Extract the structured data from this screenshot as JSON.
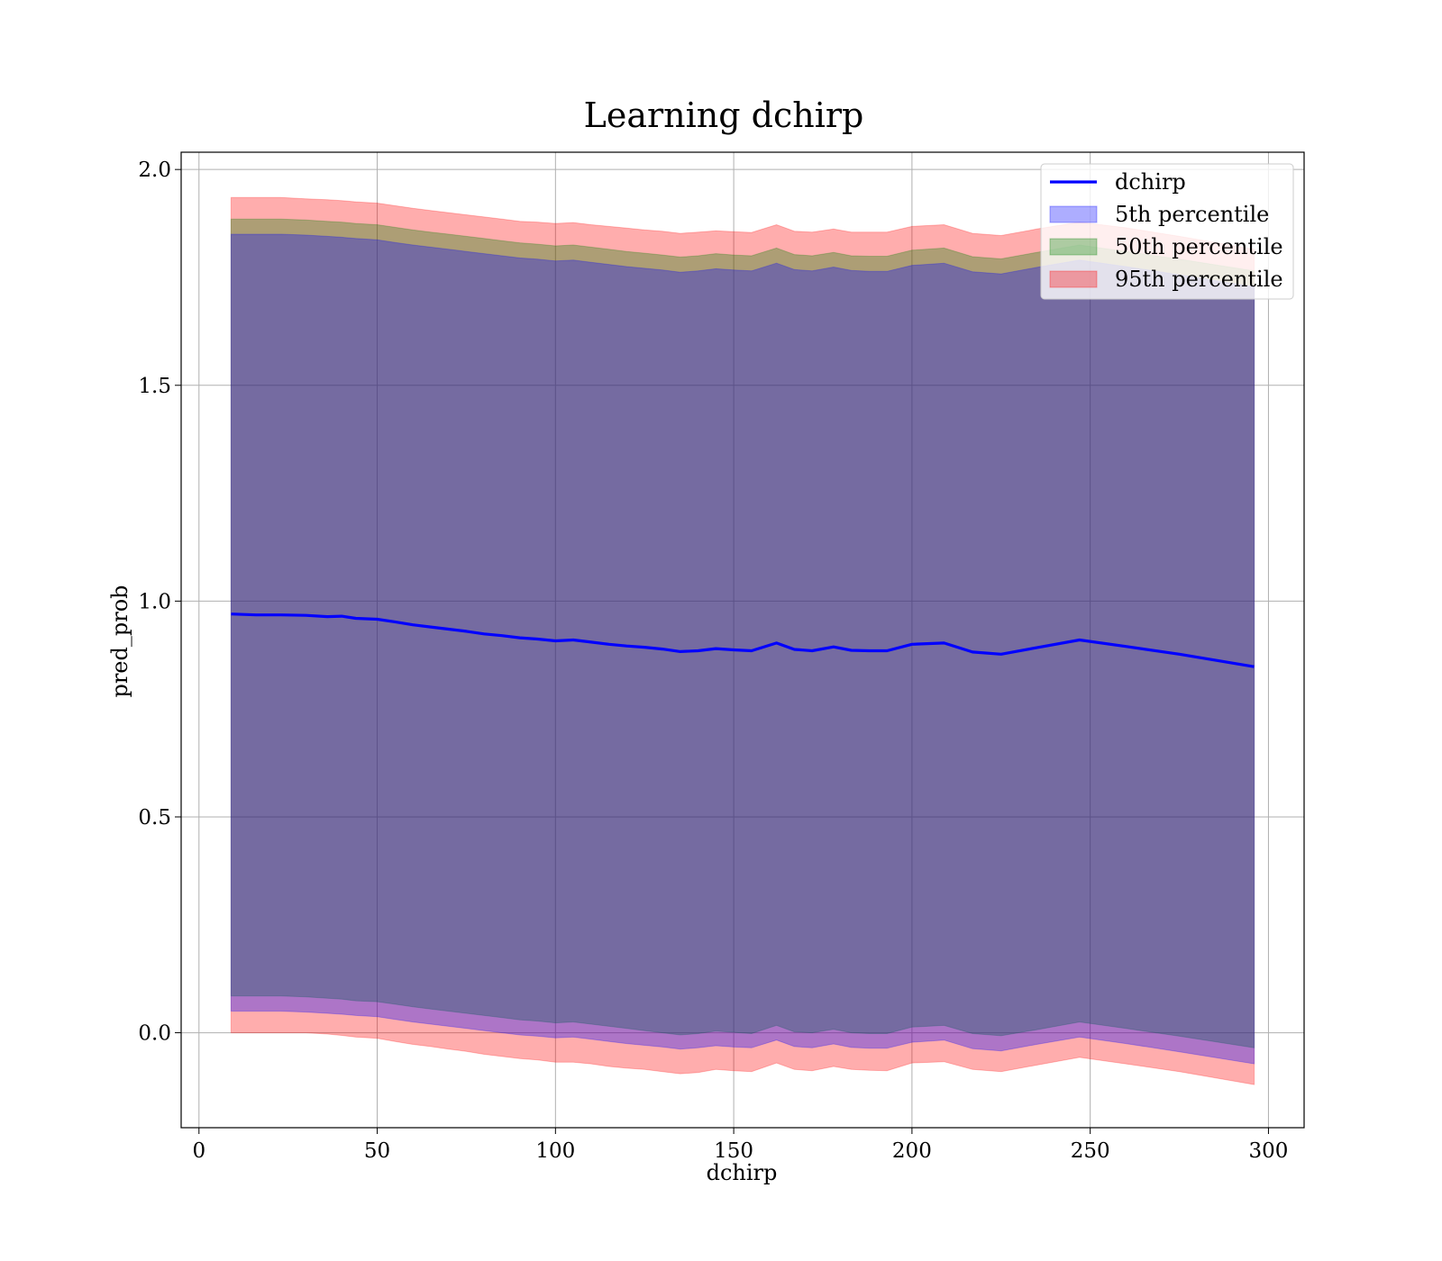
{
  "chart_data": {
    "type": "line",
    "title": "Learning dchirp",
    "xlabel": "dchirp",
    "ylabel": "pred_prob",
    "xlim": [
      -5,
      310
    ],
    "ylim": [
      -0.22,
      2.04
    ],
    "xticks": [
      0,
      50,
      100,
      150,
      200,
      250,
      300
    ],
    "yticks": [
      0.0,
      0.5,
      1.0,
      1.5,
      2.0
    ],
    "xtick_labels": [
      "0",
      "50",
      "100",
      "150",
      "200",
      "250",
      "300"
    ],
    "ytick_labels": [
      "0.0",
      "0.5",
      "1.0",
      "1.5",
      "2.0"
    ],
    "grid": true,
    "legend_position": "top-right",
    "legend": [
      {
        "label": "dchirp",
        "kind": "line",
        "color": "#0000ff"
      },
      {
        "label": "5th percentile",
        "kind": "patch",
        "color": "#0000ff"
      },
      {
        "label": "50th percentile",
        "kind": "patch",
        "color": "#008000"
      },
      {
        "label": "95th percentile",
        "kind": "patch",
        "color": "#ff0000"
      }
    ],
    "x": [
      9,
      16,
      23,
      30,
      36,
      40,
      44,
      50,
      55,
      60,
      65,
      70,
      75,
      80,
      85,
      90,
      95,
      100,
      105,
      110,
      115,
      120,
      125,
      130,
      135,
      140,
      145,
      150,
      155,
      162,
      167,
      172,
      178,
      183,
      188,
      193,
      200,
      209,
      217,
      225,
      235,
      247,
      260,
      275,
      296
    ],
    "line": {
      "name": "dchirp",
      "color": "#0000ff",
      "values": [
        0.97,
        0.968,
        0.968,
        0.967,
        0.964,
        0.965,
        0.96,
        0.958,
        0.952,
        0.945,
        0.94,
        0.935,
        0.93,
        0.924,
        0.92,
        0.915,
        0.912,
        0.908,
        0.91,
        0.905,
        0.9,
        0.896,
        0.893,
        0.889,
        0.883,
        0.885,
        0.89,
        0.887,
        0.885,
        0.903,
        0.888,
        0.885,
        0.894,
        0.886,
        0.885,
        0.885,
        0.9,
        0.903,
        0.882,
        0.877,
        0.892,
        0.91,
        0.895,
        0.877,
        0.848
      ]
    },
    "bands": [
      {
        "name": "95th percentile",
        "color": "#ff0000",
        "opacity": 0.32,
        "lower": [
          0.0,
          0.0,
          0.0,
          0.0,
          -0.003,
          -0.006,
          -0.01,
          -0.013,
          -0.02,
          -0.027,
          -0.032,
          -0.038,
          -0.043,
          -0.05,
          -0.055,
          -0.06,
          -0.063,
          -0.068,
          -0.068,
          -0.072,
          -0.078,
          -0.082,
          -0.085,
          -0.09,
          -0.095,
          -0.092,
          -0.085,
          -0.088,
          -0.09,
          -0.07,
          -0.085,
          -0.088,
          -0.078,
          -0.085,
          -0.087,
          -0.088,
          -0.07,
          -0.067,
          -0.085,
          -0.09,
          -0.075,
          -0.057,
          -0.072,
          -0.09,
          -0.12
        ],
        "upper": [
          1.935,
          1.935,
          1.935,
          1.932,
          1.93,
          1.928,
          1.925,
          1.922,
          1.916,
          1.91,
          1.905,
          1.9,
          1.895,
          1.89,
          1.885,
          1.88,
          1.878,
          1.875,
          1.877,
          1.872,
          1.868,
          1.864,
          1.86,
          1.857,
          1.852,
          1.855,
          1.858,
          1.856,
          1.854,
          1.872,
          1.857,
          1.855,
          1.862,
          1.855,
          1.855,
          1.855,
          1.868,
          1.872,
          1.852,
          1.847,
          1.862,
          1.878,
          1.865,
          1.845,
          1.815
        ]
      },
      {
        "name": "50th percentile",
        "color": "#008000",
        "opacity": 0.32,
        "lower": [
          0.085,
          0.085,
          0.085,
          0.083,
          0.08,
          0.078,
          0.074,
          0.072,
          0.066,
          0.06,
          0.055,
          0.05,
          0.045,
          0.04,
          0.035,
          0.03,
          0.027,
          0.023,
          0.025,
          0.02,
          0.015,
          0.01,
          0.005,
          0.0,
          -0.005,
          -0.002,
          0.004,
          0.001,
          -0.002,
          0.017,
          0.002,
          0.0,
          0.008,
          0.0,
          -0.002,
          -0.002,
          0.013,
          0.017,
          -0.002,
          -0.007,
          0.007,
          0.025,
          0.01,
          -0.008,
          -0.035
        ],
        "upper": [
          1.885,
          1.885,
          1.885,
          1.883,
          1.88,
          1.878,
          1.875,
          1.872,
          1.866,
          1.86,
          1.855,
          1.85,
          1.845,
          1.84,
          1.835,
          1.83,
          1.827,
          1.823,
          1.825,
          1.82,
          1.815,
          1.81,
          1.806,
          1.802,
          1.797,
          1.8,
          1.805,
          1.802,
          1.8,
          1.818,
          1.803,
          1.8,
          1.808,
          1.8,
          1.799,
          1.799,
          1.813,
          1.818,
          1.798,
          1.793,
          1.808,
          1.825,
          1.81,
          1.792,
          1.765
        ]
      },
      {
        "name": "5th percentile",
        "color": "#0000ff",
        "opacity": 0.32,
        "lower": [
          0.05,
          0.05,
          0.05,
          0.048,
          0.045,
          0.043,
          0.04,
          0.037,
          0.031,
          0.025,
          0.02,
          0.015,
          0.01,
          0.005,
          0.0,
          -0.005,
          -0.008,
          -0.012,
          -0.01,
          -0.015,
          -0.02,
          -0.025,
          -0.029,
          -0.033,
          -0.038,
          -0.035,
          -0.03,
          -0.033,
          -0.035,
          -0.017,
          -0.032,
          -0.035,
          -0.026,
          -0.034,
          -0.036,
          -0.036,
          -0.022,
          -0.017,
          -0.037,
          -0.042,
          -0.027,
          -0.01,
          -0.025,
          -0.044,
          -0.072
        ],
        "upper": [
          1.85,
          1.85,
          1.85,
          1.848,
          1.845,
          1.843,
          1.84,
          1.837,
          1.831,
          1.825,
          1.82,
          1.815,
          1.81,
          1.805,
          1.8,
          1.795,
          1.792,
          1.788,
          1.79,
          1.785,
          1.78,
          1.775,
          1.771,
          1.767,
          1.762,
          1.765,
          1.77,
          1.767,
          1.765,
          1.783,
          1.768,
          1.765,
          1.774,
          1.766,
          1.764,
          1.764,
          1.778,
          1.783,
          1.763,
          1.758,
          1.773,
          1.79,
          1.775,
          1.756,
          1.728
        ]
      }
    ]
  }
}
